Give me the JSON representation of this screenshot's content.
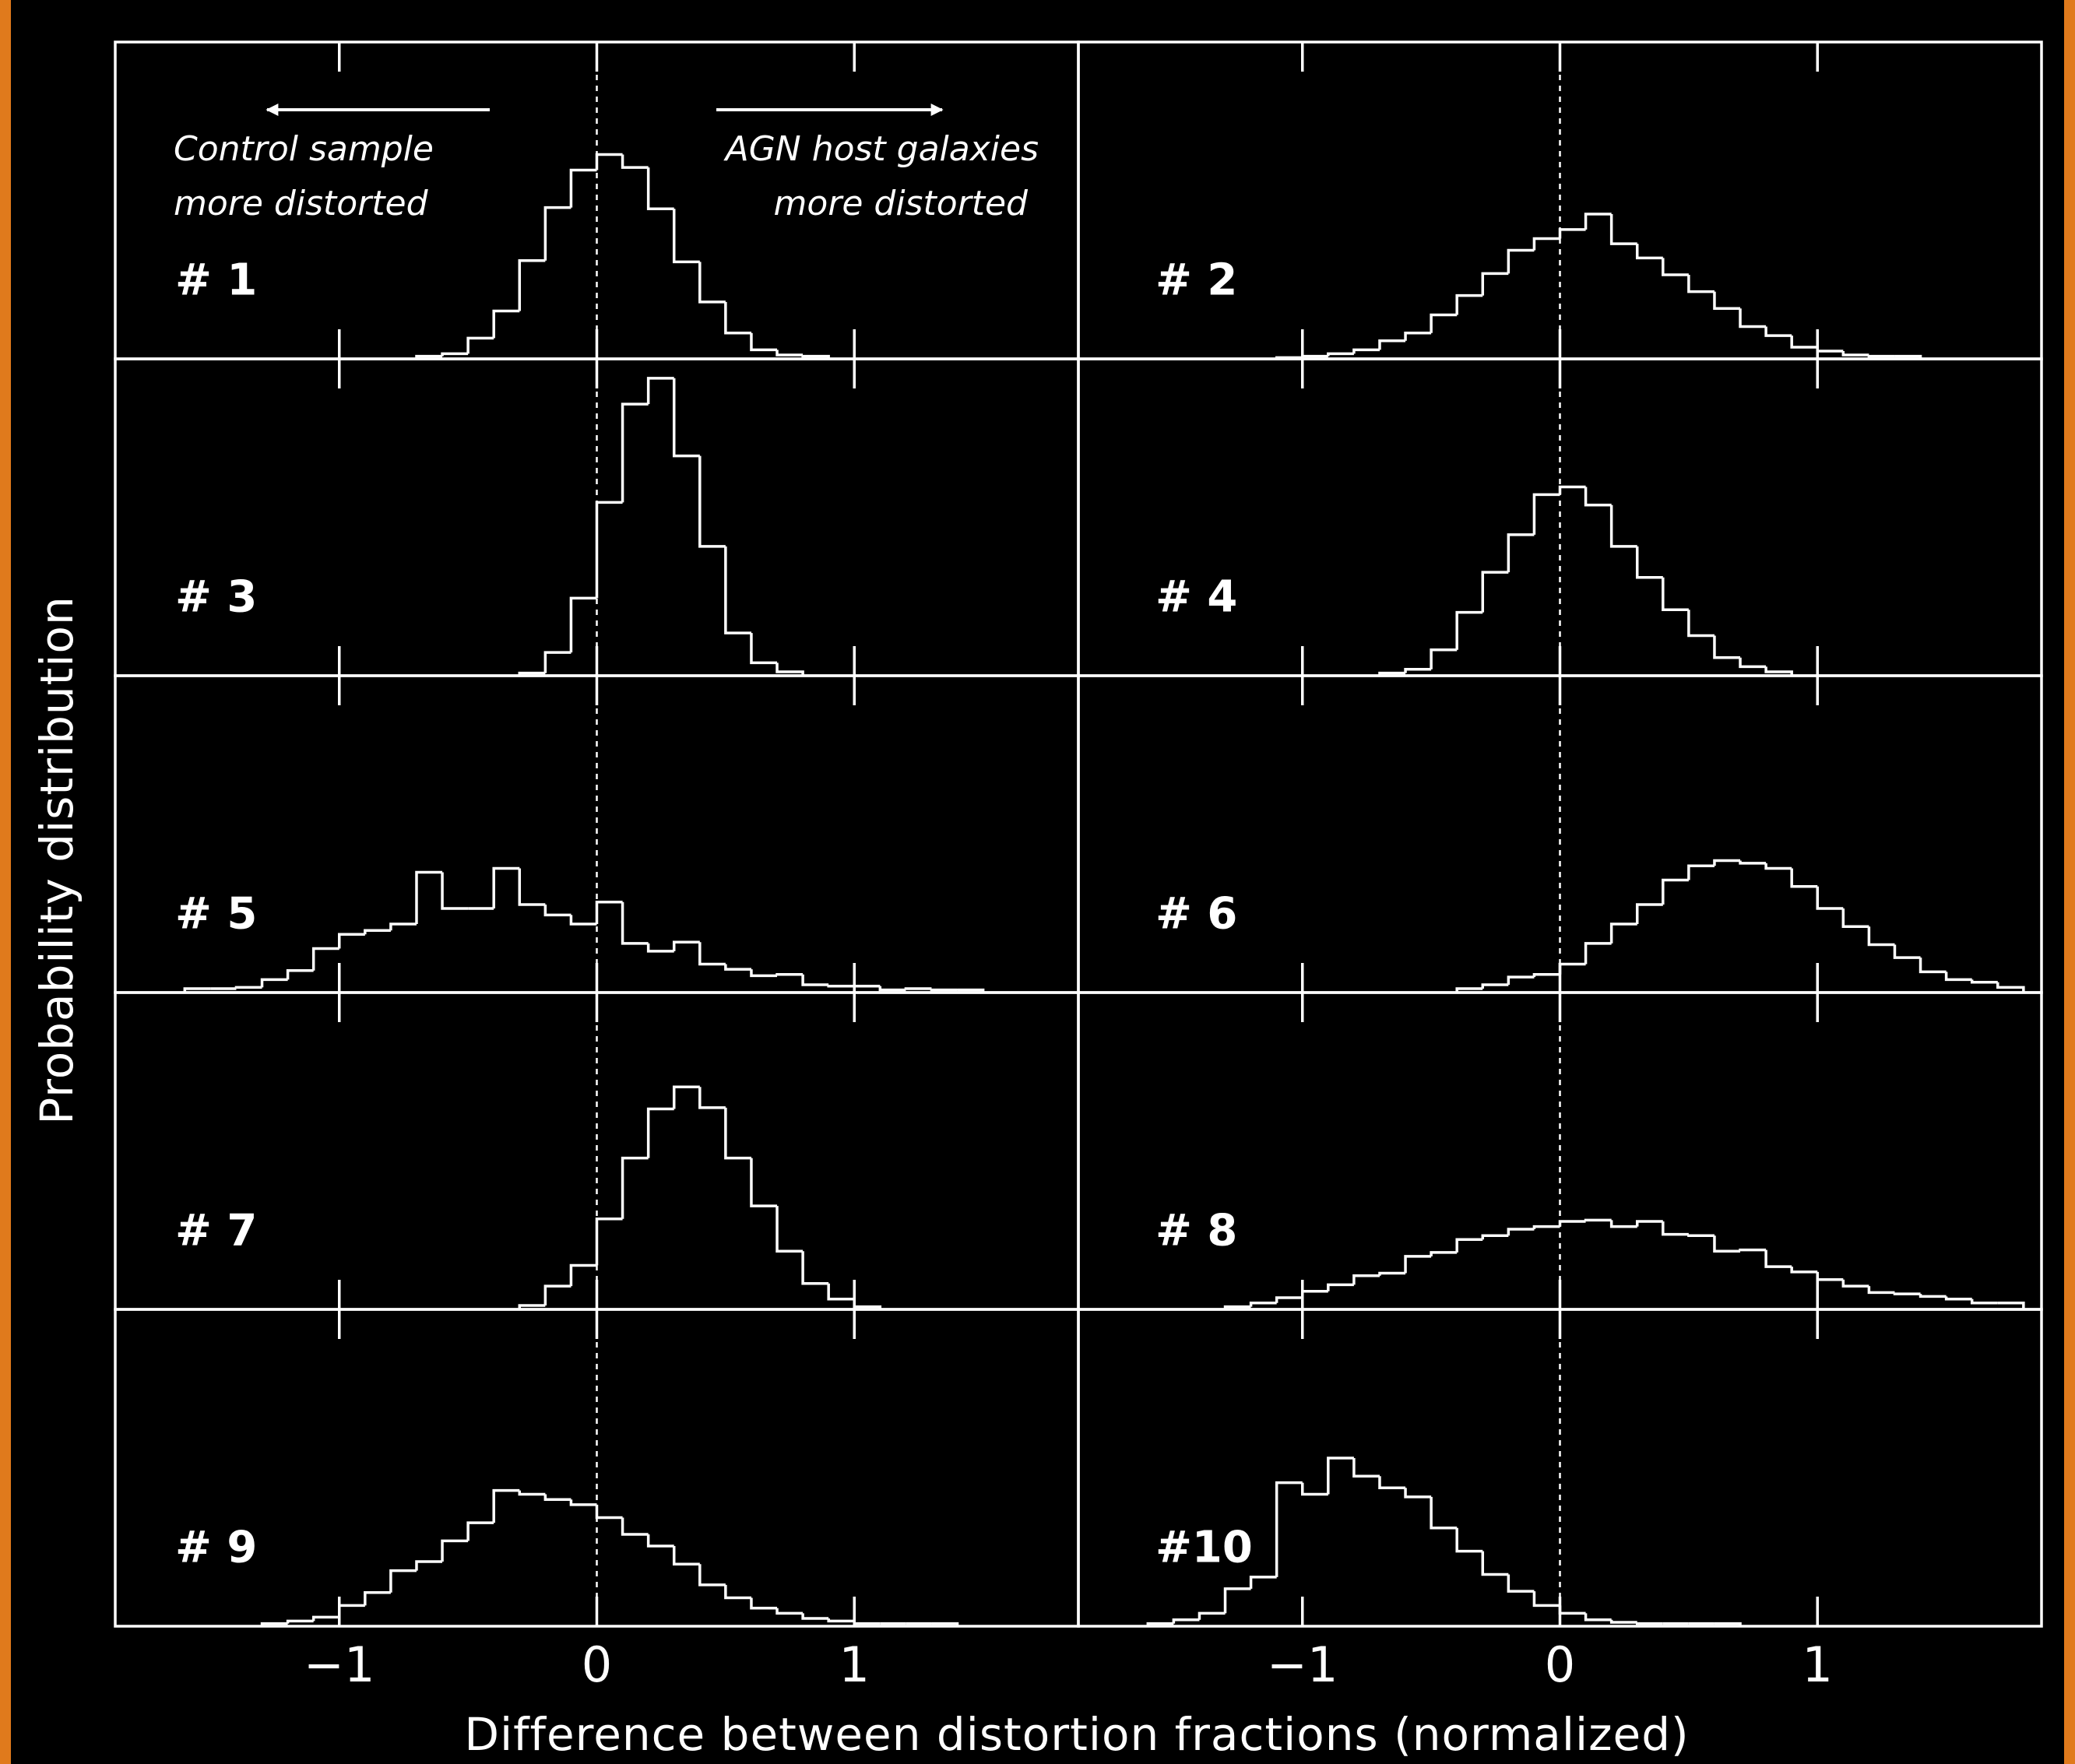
{
  "figure": {
    "xlabel": "Difference between distortion fractions (normalized)",
    "ylabel": "Probability distribution"
  },
  "chart_data": [
    {
      "type": "histogram",
      "label": "# 1",
      "color": "#ffffff",
      "xlim": [
        -1.87,
        1.87
      ],
      "ylim": [
        0,
        12.25
      ],
      "xticks": [
        -1,
        0,
        1
      ],
      "tick_labels": false,
      "vline": 0,
      "annotations": [
        "Control sample",
        "more distorted",
        "AGN host galaxies",
        "more distorted"
      ],
      "bins": [
        -0.7,
        -0.6,
        -0.5,
        -0.4,
        -0.3,
        -0.2,
        -0.1,
        0,
        0.1,
        0.2,
        0.3,
        0.4,
        0.5,
        0.6,
        0.7,
        0.8,
        0.9
      ],
      "values": [
        0.1,
        0.2,
        0.8,
        1.85,
        3.8,
        5.85,
        7.3,
        7.9,
        7.4,
        5.8,
        3.75,
        2.2,
        1.0,
        0.35,
        0.15,
        0.1
      ]
    },
    {
      "type": "histogram",
      "label": "# 2",
      "color": "#ffffff",
      "xlim": [
        -1.87,
        1.87
      ],
      "ylim": [
        0,
        12.25
      ],
      "xticks": [
        -1,
        0,
        1
      ],
      "tick_labels": false,
      "vline": 0,
      "bins": [
        -1.1,
        -1,
        -0.9,
        -0.8,
        -0.7,
        -0.6,
        -0.5,
        -0.4,
        -0.3,
        -0.2,
        -0.1,
        0,
        0.1,
        0.2,
        0.3,
        0.4,
        0.5,
        0.6,
        0.7,
        0.8,
        0.9,
        1,
        1.1,
        1.2,
        1.3,
        1.4
      ],
      "values": [
        0.05,
        0.1,
        0.2,
        0.35,
        0.7,
        1.0,
        1.7,
        2.45,
        3.3,
        4.2,
        4.65,
        5.0,
        5.6,
        4.45,
        3.9,
        3.25,
        2.6,
        1.95,
        1.25,
        0.9,
        0.45,
        0.3,
        0.15,
        0.1,
        0.1
      ]
    },
    {
      "type": "histogram",
      "label": "# 3",
      "color": "#ffffff",
      "xlim": [
        -1.87,
        1.87
      ],
      "ylim": [
        0,
        12.25
      ],
      "xticks": [
        -1,
        0,
        1
      ],
      "tick_labels": false,
      "vline": 0,
      "bins": [
        -0.3,
        -0.2,
        -0.1,
        0,
        0.1,
        0.2,
        0.3,
        0.4,
        0.5,
        0.6,
        0.7,
        0.8
      ],
      "values": [
        0.1,
        0.9,
        3.0,
        6.7,
        10.5,
        11.5,
        8.5,
        5.0,
        1.65,
        0.5,
        0.15
      ]
    },
    {
      "type": "histogram",
      "label": "# 4",
      "color": "#ffffff",
      "xlim": [
        -1.87,
        1.87
      ],
      "ylim": [
        0,
        12.25
      ],
      "xticks": [
        -1,
        0,
        1
      ],
      "tick_labels": false,
      "vline": 0,
      "bins": [
        -0.7,
        -0.6,
        -0.5,
        -0.4,
        -0.3,
        -0.2,
        -0.1,
        0,
        0.1,
        0.2,
        0.3,
        0.4,
        0.5,
        0.6,
        0.7,
        0.8,
        0.9
      ],
      "values": [
        0.1,
        0.25,
        1.0,
        2.45,
        4.0,
        5.45,
        7.0,
        7.3,
        6.6,
        5.0,
        3.8,
        2.55,
        1.55,
        0.7,
        0.35,
        0.15
      ]
    },
    {
      "type": "histogram",
      "label": "# 5",
      "color": "#ffffff",
      "xlim": [
        -1.87,
        1.87
      ],
      "ylim": [
        0,
        12.25
      ],
      "xticks": [
        -1,
        0,
        1
      ],
      "tick_labels": false,
      "vline": 0,
      "bins": [
        -1.6,
        -1.5,
        -1.4,
        -1.3,
        -1.2,
        -1.1,
        -1,
        -0.9,
        -0.8,
        -0.7,
        -0.6,
        -0.5,
        -0.4,
        -0.3,
        -0.2,
        -0.1,
        0,
        0.1,
        0.2,
        0.3,
        0.4,
        0.5,
        0.6,
        0.7,
        0.8,
        0.9,
        1,
        1.1,
        1.2,
        1.3,
        1.4,
        1.5
      ],
      "values": [
        0.15,
        0.15,
        0.2,
        0.5,
        0.85,
        1.7,
        2.25,
        2.4,
        2.65,
        4.65,
        3.25,
        3.25,
        4.8,
        3.4,
        3.0,
        2.65,
        3.5,
        1.9,
        1.6,
        1.95,
        1.1,
        0.9,
        0.65,
        0.7,
        0.3,
        0.25,
        0.25,
        0.1,
        0.15,
        0.1,
        0.1
      ]
    },
    {
      "type": "histogram",
      "label": "# 6",
      "color": "#ffffff",
      "xlim": [
        -1.87,
        1.87
      ],
      "ylim": [
        0,
        12.25
      ],
      "xticks": [
        -1,
        0,
        1
      ],
      "tick_labels": false,
      "vline": 0,
      "bins": [
        -0.4,
        -0.3,
        -0.2,
        -0.1,
        0,
        0.1,
        0.2,
        0.3,
        0.4,
        0.5,
        0.6,
        0.7,
        0.8,
        0.9,
        1,
        1.1,
        1.2,
        1.3,
        1.4,
        1.5,
        1.6,
        1.7,
        1.8
      ],
      "values": [
        0.15,
        0.3,
        0.6,
        0.7,
        1.1,
        1.9,
        2.65,
        3.4,
        4.35,
        4.9,
        5.1,
        5.0,
        4.8,
        4.1,
        3.25,
        2.55,
        1.85,
        1.35,
        0.8,
        0.5,
        0.4,
        0.2
      ]
    },
    {
      "type": "histogram",
      "label": "# 7",
      "color": "#ffffff",
      "xlim": [
        -1.87,
        1.87
      ],
      "ylim": [
        0,
        12.25
      ],
      "xticks": [
        -1,
        0,
        1
      ],
      "tick_labels": false,
      "vline": 0,
      "bins": [
        -0.3,
        -0.2,
        -0.1,
        0,
        0.1,
        0.2,
        0.3,
        0.4,
        0.5,
        0.6,
        0.7,
        0.8,
        0.9,
        1,
        1.1
      ],
      "values": [
        0.15,
        0.9,
        1.7,
        3.5,
        5.85,
        7.75,
        8.6,
        7.8,
        5.85,
        4.0,
        2.25,
        1.0,
        0.4,
        0.1
      ]
    },
    {
      "type": "histogram",
      "label": "# 8",
      "color": "#ffffff",
      "xlim": [
        -1.87,
        1.87
      ],
      "ylim": [
        0,
        12.25
      ],
      "xticks": [
        -1,
        0,
        1
      ],
      "tick_labels": false,
      "vline": 0,
      "bins": [
        -1.3,
        -1.2,
        -1.1,
        -1,
        -0.9,
        -0.8,
        -0.7,
        -0.6,
        -0.5,
        -0.4,
        -0.3,
        -0.2,
        -0.1,
        0,
        0.1,
        0.2,
        0.3,
        0.4,
        0.5,
        0.6,
        0.7,
        0.8,
        0.9,
        1,
        1.1,
        1.2,
        1.3,
        1.4,
        1.5,
        1.6,
        1.7,
        1.8
      ],
      "values": [
        0.1,
        0.25,
        0.45,
        0.7,
        0.95,
        1.3,
        1.4,
        2.05,
        2.2,
        2.7,
        2.85,
        3.1,
        3.2,
        3.4,
        3.45,
        3.2,
        3.4,
        2.9,
        2.85,
        2.25,
        2.3,
        1.65,
        1.45,
        1.15,
        0.9,
        0.65,
        0.6,
        0.5,
        0.4,
        0.25,
        0.25
      ]
    },
    {
      "type": "histogram",
      "label": "# 9",
      "color": "#ffffff",
      "xlim": [
        -1.87,
        1.87
      ],
      "ylim": [
        0,
        12.25
      ],
      "xticks": [
        {
          "value": -1,
          "label": "−1"
        },
        0,
        1
      ],
      "tick_labels": true,
      "vline": 0,
      "bins": [
        -1.3,
        -1.2,
        -1.1,
        -1,
        -0.9,
        -0.8,
        -0.7,
        -0.6,
        -0.5,
        -0.4,
        -0.3,
        -0.2,
        -0.1,
        0,
        0.1,
        0.2,
        0.3,
        0.4,
        0.5,
        0.6,
        0.7,
        0.8,
        0.9,
        1,
        1.1,
        1.2,
        1.3,
        1.4
      ],
      "values": [
        0.1,
        0.2,
        0.35,
        0.8,
        1.3,
        2.15,
        2.5,
        3.3,
        4.0,
        5.25,
        5.1,
        4.9,
        4.7,
        4.2,
        3.55,
        3.1,
        2.4,
        1.6,
        1.1,
        0.7,
        0.5,
        0.3,
        0.2,
        0.1,
        0.1,
        0.1,
        0.1
      ]
    },
    {
      "type": "histogram",
      "label": "#10",
      "color": "#ffffff",
      "xlim": [
        -1.87,
        1.87
      ],
      "ylim": [
        0,
        12.25
      ],
      "xticks": [
        {
          "value": -1,
          "label": "−1"
        },
        0,
        1
      ],
      "tick_labels": true,
      "vline": 0,
      "bins": [
        -1.6,
        -1.5,
        -1.4,
        -1.3,
        -1.2,
        -1.1,
        -1,
        -0.9,
        -0.8,
        -0.7,
        -0.6,
        -0.5,
        -0.4,
        -0.3,
        -0.2,
        -0.1,
        0,
        0.1,
        0.2,
        0.3,
        0.4,
        0.5,
        0.6,
        0.7
      ],
      "values": [
        0.1,
        0.25,
        0.5,
        1.45,
        1.9,
        5.55,
        5.1,
        6.5,
        5.8,
        5.35,
        5.0,
        3.8,
        2.9,
        2.0,
        1.35,
        0.8,
        0.5,
        0.25,
        0.15,
        0.1,
        0.1,
        0.1,
        0.1
      ]
    }
  ]
}
